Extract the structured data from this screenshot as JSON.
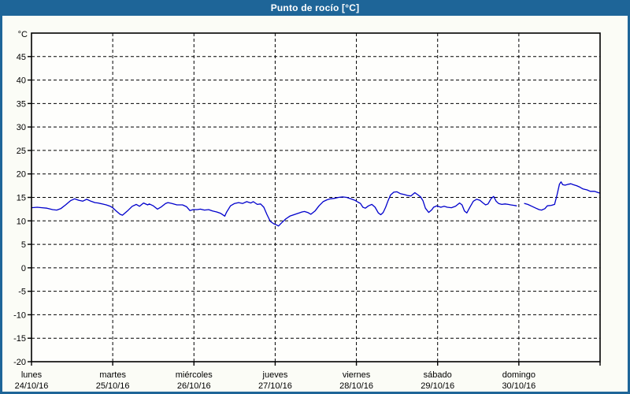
{
  "window": {
    "title": "Punto de rocío [°C]"
  },
  "colors": {
    "titlebar": "#1e6598",
    "outer_frame": "#1e6598",
    "content_background": "#fbfcf6",
    "plot_background": "#fefefc",
    "grid": "#000000",
    "axis": "#000000",
    "line": "#0000cc",
    "title_text": "#ffffff",
    "label_text": "#000000"
  },
  "chart_data": {
    "type": "line",
    "title": "Punto de rocío [°C]",
    "unit_label": "°C",
    "legend": "none",
    "grid_style": "dashed",
    "x_domain_days": [
      0,
      7
    ],
    "y_domain": [
      -20,
      50
    ],
    "y_ticks": [
      45,
      40,
      35,
      30,
      25,
      20,
      15,
      10,
      5,
      0,
      -5,
      -10,
      -15,
      -20
    ],
    "x_categories": [
      {
        "day": "lunes",
        "date": "24/10/16"
      },
      {
        "day": "martes",
        "date": "25/10/16"
      },
      {
        "day": "miércoles",
        "date": "26/10/16"
      },
      {
        "day": "jueves",
        "date": "27/10/16"
      },
      {
        "day": "viernes",
        "date": "28/10/16"
      },
      {
        "day": "sábado",
        "date": "29/10/16"
      },
      {
        "day": "domingo",
        "date": "30/10/16"
      }
    ],
    "series": [
      {
        "name": "Punto de rocío",
        "unit": "°C",
        "color": "#0000cc",
        "segments": [
          [
            [
              0.0,
              12.8
            ],
            [
              0.07,
              12.9
            ],
            [
              0.13,
              12.8
            ],
            [
              0.19,
              12.7
            ],
            [
              0.26,
              12.4
            ],
            [
              0.31,
              12.3
            ],
            [
              0.36,
              12.6
            ],
            [
              0.42,
              13.4
            ],
            [
              0.48,
              14.3
            ],
            [
              0.53,
              14.7
            ],
            [
              0.58,
              14.4
            ],
            [
              0.63,
              14.2
            ],
            [
              0.68,
              14.6
            ],
            [
              0.73,
              14.2
            ],
            [
              0.78,
              13.9
            ],
            [
              0.82,
              13.8
            ],
            [
              0.87,
              13.6
            ],
            [
              0.92,
              13.4
            ],
            [
              0.97,
              13.1
            ],
            [
              1.0,
              12.8
            ],
            [
              1.05,
              12.0
            ],
            [
              1.09,
              11.4
            ],
            [
              1.12,
              11.2
            ],
            [
              1.18,
              12.1
            ],
            [
              1.24,
              13.1
            ],
            [
              1.29,
              13.5
            ],
            [
              1.33,
              13.1
            ],
            [
              1.38,
              13.8
            ],
            [
              1.43,
              13.4
            ],
            [
              1.45,
              13.6
            ],
            [
              1.5,
              13.2
            ],
            [
              1.55,
              12.5
            ],
            [
              1.6,
              13.0
            ],
            [
              1.65,
              13.7
            ],
            [
              1.68,
              13.9
            ],
            [
              1.73,
              13.7
            ],
            [
              1.79,
              13.4
            ],
            [
              1.86,
              13.4
            ],
            [
              1.91,
              13.0
            ],
            [
              1.95,
              12.2
            ],
            [
              1.99,
              12.4
            ],
            [
              2.04,
              12.4
            ],
            [
              2.08,
              12.5
            ],
            [
              2.13,
              12.3
            ],
            [
              2.18,
              12.4
            ],
            [
              2.23,
              12.1
            ],
            [
              2.28,
              11.9
            ],
            [
              2.33,
              11.6
            ],
            [
              2.38,
              11.0
            ],
            [
              2.4,
              11.8
            ],
            [
              2.45,
              13.2
            ],
            [
              2.5,
              13.7
            ],
            [
              2.55,
              13.9
            ],
            [
              2.6,
              13.7
            ],
            [
              2.65,
              14.1
            ],
            [
              2.7,
              13.8
            ],
            [
              2.73,
              14.1
            ],
            [
              2.78,
              13.5
            ],
            [
              2.82,
              13.6
            ],
            [
              2.86,
              12.9
            ],
            [
              2.9,
              11.3
            ],
            [
              2.94,
              9.9
            ],
            [
              2.98,
              9.4
            ],
            [
              3.01,
              9.2
            ],
            [
              3.04,
              8.9
            ],
            [
              3.08,
              9.6
            ],
            [
              3.13,
              10.4
            ],
            [
              3.18,
              11.0
            ],
            [
              3.23,
              11.3
            ],
            [
              3.28,
              11.6
            ],
            [
              3.33,
              11.9
            ],
            [
              3.36,
              12.0
            ],
            [
              3.4,
              11.8
            ],
            [
              3.44,
              11.4
            ],
            [
              3.49,
              12.1
            ],
            [
              3.54,
              13.2
            ],
            [
              3.59,
              14.1
            ],
            [
              3.64,
              14.5
            ],
            [
              3.68,
              14.7
            ],
            [
              3.73,
              14.8
            ],
            [
              3.78,
              15.0
            ],
            [
              3.83,
              15.1
            ],
            [
              3.88,
              15.0
            ],
            [
              3.93,
              14.7
            ],
            [
              3.98,
              14.4
            ],
            [
              4.02,
              14.0
            ],
            [
              4.05,
              13.7
            ],
            [
              4.08,
              12.9
            ],
            [
              4.11,
              12.7
            ],
            [
              4.15,
              13.2
            ],
            [
              4.19,
              13.5
            ],
            [
              4.23,
              12.9
            ],
            [
              4.27,
              11.7
            ],
            [
              4.3,
              11.3
            ],
            [
              4.33,
              11.8
            ],
            [
              4.36,
              12.9
            ],
            [
              4.39,
              14.3
            ],
            [
              4.42,
              15.5
            ],
            [
              4.46,
              16.1
            ],
            [
              4.5,
              16.2
            ],
            [
              4.54,
              15.8
            ],
            [
              4.59,
              15.6
            ],
            [
              4.63,
              15.4
            ],
            [
              4.67,
              15.3
            ],
            [
              4.72,
              16.0
            ],
            [
              4.76,
              15.5
            ],
            [
              4.79,
              15.1
            ],
            [
              4.82,
              14.3
            ],
            [
              4.85,
              12.7
            ],
            [
              4.89,
              11.8
            ],
            [
              4.93,
              12.4
            ],
            [
              4.95,
              12.9
            ],
            [
              4.99,
              13.2
            ],
            [
              5.04,
              12.9
            ],
            [
              5.08,
              13.1
            ],
            [
              5.12,
              12.9
            ],
            [
              5.17,
              12.8
            ],
            [
              5.22,
              13.1
            ],
            [
              5.27,
              13.8
            ],
            [
              5.3,
              13.4
            ],
            [
              5.33,
              12.1
            ],
            [
              5.36,
              11.7
            ],
            [
              5.4,
              13.0
            ],
            [
              5.44,
              14.2
            ],
            [
              5.48,
              14.6
            ],
            [
              5.52,
              14.4
            ],
            [
              5.56,
              13.8
            ],
            [
              5.59,
              13.4
            ],
            [
              5.62,
              13.6
            ],
            [
              5.66,
              14.8
            ],
            [
              5.69,
              15.2
            ],
            [
              5.72,
              14.2
            ],
            [
              5.75,
              13.7
            ],
            [
              5.79,
              13.5
            ],
            [
              5.83,
              13.6
            ],
            [
              5.87,
              13.5
            ],
            [
              5.9,
              13.4
            ],
            [
              5.94,
              13.3
            ],
            [
              5.97,
              13.2
            ]
          ],
          [
            [
              6.07,
              13.7
            ],
            [
              6.11,
              13.5
            ],
            [
              6.16,
              13.1
            ],
            [
              6.21,
              12.7
            ],
            [
              6.25,
              12.4
            ],
            [
              6.28,
              12.3
            ],
            [
              6.32,
              12.6
            ],
            [
              6.35,
              13.2
            ],
            [
              6.4,
              13.3
            ],
            [
              6.44,
              13.5
            ],
            [
              6.47,
              15.5
            ],
            [
              6.5,
              17.8
            ],
            [
              6.52,
              18.3
            ],
            [
              6.54,
              17.7
            ],
            [
              6.57,
              17.6
            ],
            [
              6.61,
              17.8
            ],
            [
              6.64,
              17.9
            ],
            [
              6.67,
              17.7
            ],
            [
              6.71,
              17.5
            ],
            [
              6.75,
              17.2
            ],
            [
              6.79,
              16.8
            ],
            [
              6.84,
              16.6
            ],
            [
              6.88,
              16.3
            ],
            [
              6.93,
              16.3
            ],
            [
              6.98,
              16.0
            ],
            [
              7.0,
              15.9
            ]
          ]
        ]
      }
    ]
  }
}
